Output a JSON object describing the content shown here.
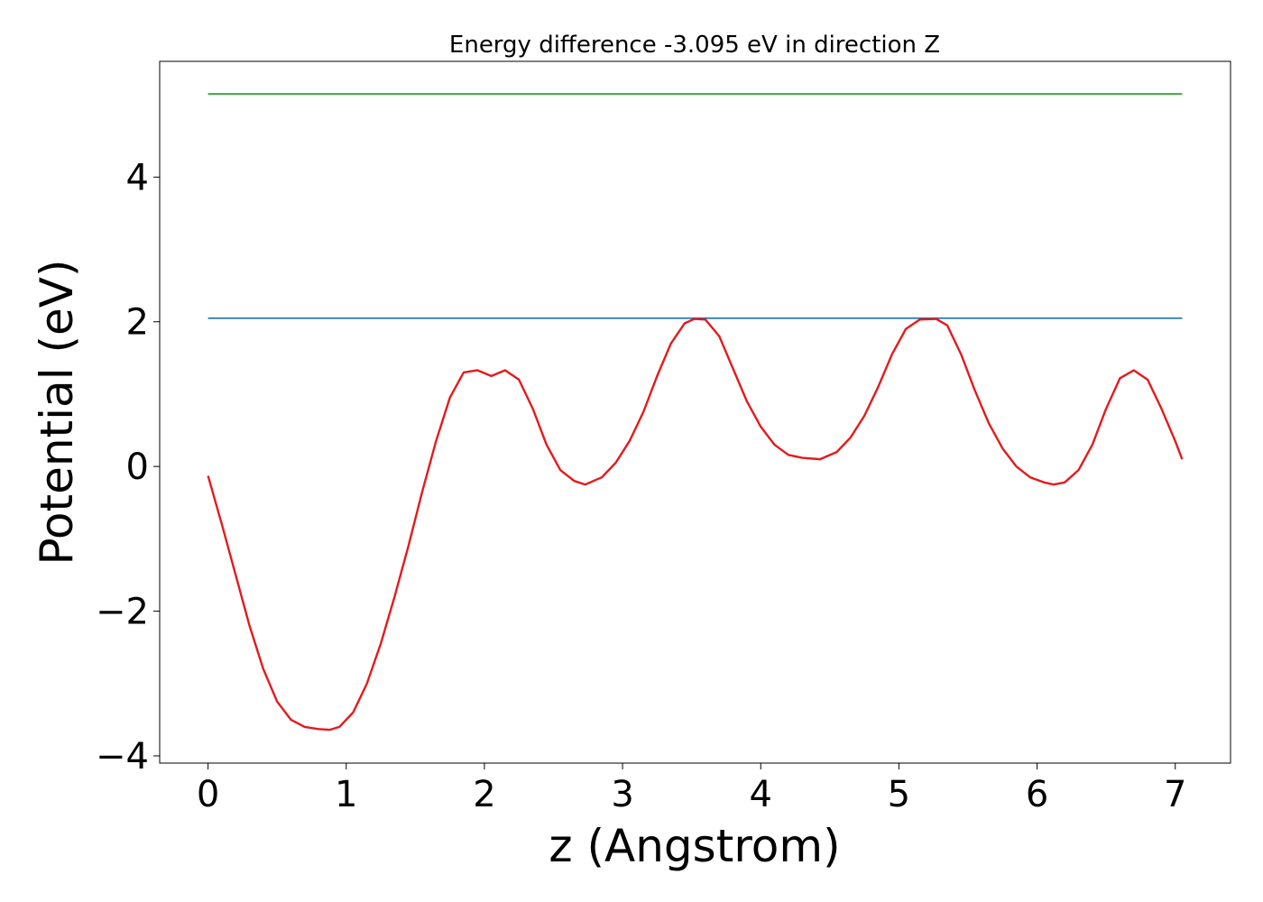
{
  "chart_data": {
    "type": "line",
    "title": "Energy difference -3.095 eV in direction Z",
    "xlabel": "z (Angstrom)",
    "ylabel": "Potential (eV)",
    "xlim": [
      -0.35,
      7.4
    ],
    "ylim": [
      -4.1,
      5.6
    ],
    "xticks": [
      0,
      1,
      2,
      3,
      4,
      5,
      6,
      7
    ],
    "xtick_labels": [
      "0",
      "1",
      "2",
      "3",
      "4",
      "5",
      "6",
      "7"
    ],
    "yticks": [
      -4,
      -2,
      0,
      2,
      4
    ],
    "ytick_labels": [
      "−4",
      "−2",
      "0",
      "2",
      "4"
    ],
    "grid": false,
    "series": [
      {
        "color": "#2ca02c",
        "x": [
          0,
          7.05
        ],
        "y": [
          5.15,
          5.15
        ]
      },
      {
        "color": "#1f77b4",
        "x": [
          0,
          7.05
        ],
        "y": [
          2.05,
          2.05
        ]
      },
      {
        "color": "#e41a1c",
        "x": [
          0,
          0.1,
          0.2,
          0.3,
          0.4,
          0.5,
          0.6,
          0.7,
          0.8,
          0.88,
          0.95,
          1.05,
          1.15,
          1.25,
          1.35,
          1.45,
          1.55,
          1.65,
          1.75,
          1.85,
          1.95,
          2.05,
          2.15,
          2.25,
          2.35,
          2.45,
          2.55,
          2.65,
          2.73,
          2.85,
          2.95,
          3.05,
          3.15,
          3.25,
          3.35,
          3.45,
          3.52,
          3.6,
          3.7,
          3.8,
          3.9,
          4.0,
          4.1,
          4.2,
          4.3,
          4.43,
          4.55,
          4.65,
          4.75,
          4.85,
          4.95,
          5.05,
          5.15,
          5.27,
          5.35,
          5.45,
          5.55,
          5.65,
          5.75,
          5.85,
          5.95,
          6.05,
          6.12,
          6.2,
          6.3,
          6.4,
          6.5,
          6.6,
          6.7,
          6.8,
          6.9,
          7.0,
          7.05
        ],
        "y": [
          -0.13,
          -0.8,
          -1.5,
          -2.2,
          -2.8,
          -3.25,
          -3.5,
          -3.6,
          -3.63,
          -3.64,
          -3.6,
          -3.4,
          -3.0,
          -2.45,
          -1.8,
          -1.1,
          -0.35,
          0.35,
          0.95,
          1.3,
          1.33,
          1.25,
          1.33,
          1.2,
          0.8,
          0.3,
          -0.05,
          -0.2,
          -0.25,
          -0.15,
          0.05,
          0.35,
          0.75,
          1.25,
          1.7,
          1.98,
          2.04,
          2.03,
          1.8,
          1.35,
          0.9,
          0.55,
          0.3,
          0.16,
          0.12,
          0.1,
          0.2,
          0.4,
          0.7,
          1.1,
          1.55,
          1.9,
          2.03,
          2.04,
          1.95,
          1.55,
          1.05,
          0.6,
          0.25,
          0.0,
          -0.15,
          -0.22,
          -0.25,
          -0.22,
          -0.05,
          0.3,
          0.8,
          1.22,
          1.33,
          1.2,
          0.8,
          0.35,
          0.1
        ]
      }
    ]
  }
}
